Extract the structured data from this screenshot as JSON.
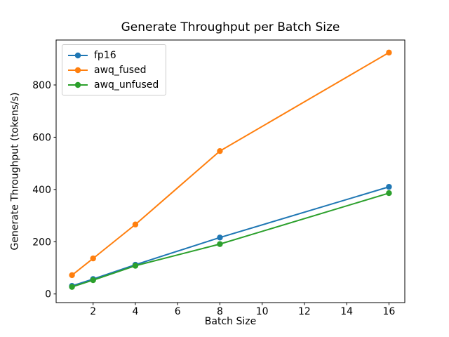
{
  "figure": {
    "background": "#ffffff",
    "text_color": "#000000"
  },
  "chart_data": {
    "type": "line",
    "title": "Generate Throughput per Batch Size",
    "xlabel": "Batch Size",
    "ylabel": "Generate Throughput (tokens/s)",
    "x": [
      1,
      2,
      4,
      8,
      16
    ],
    "series": [
      {
        "name": "fp16",
        "color": "#1f77b4",
        "values": [
          31,
          57,
          112,
          216,
          410
        ]
      },
      {
        "name": "awq_fused",
        "color": "#ff7f0e",
        "values": [
          72,
          136,
          266,
          547,
          924
        ]
      },
      {
        "name": "awq_unfused",
        "color": "#2ca02c",
        "values": [
          27,
          53,
          108,
          191,
          386
        ]
      }
    ],
    "xticks": [
      2,
      4,
      6,
      8,
      10,
      12,
      14,
      16
    ],
    "yticks": [
      0,
      200,
      400,
      600,
      800
    ],
    "xlim": [
      0.25,
      16.75
    ],
    "ylim": [
      -33,
      972
    ],
    "grid": false,
    "legend_position": "upper left",
    "marker": "circle",
    "axis_color": "#000000"
  }
}
